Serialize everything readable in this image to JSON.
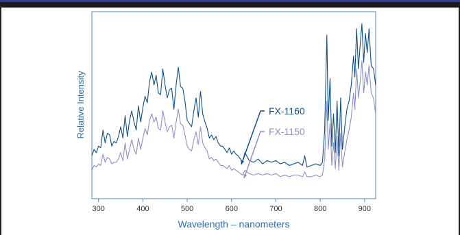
{
  "colors": {
    "fx1160": "#0f4f86",
    "fx1150": "#8e90c4",
    "axis": "#4f86b6",
    "label": "#2a6fb0",
    "tick_text": "#333333"
  },
  "chart_data": {
    "type": "line",
    "xlabel": "Wavelength – nanometers",
    "ylabel": "Relative Intensity",
    "xlim": [
      285,
      925
    ],
    "ylim": [
      0,
      100
    ],
    "xticks": [
      300,
      400,
      500,
      600,
      700,
      800,
      900
    ],
    "grid": false,
    "annotations": [
      {
        "text": "FX-1160",
        "series": 0
      },
      {
        "text": "FX-1150",
        "series": 1
      }
    ],
    "series": [
      {
        "name": "FX-1160",
        "x": [
          285,
          290,
          295,
          300,
          305,
          310,
          315,
          320,
          325,
          330,
          335,
          340,
          345,
          350,
          355,
          360,
          365,
          370,
          375,
          380,
          385,
          390,
          395,
          400,
          405,
          410,
          415,
          420,
          425,
          430,
          435,
          440,
          445,
          450,
          455,
          460,
          465,
          470,
          475,
          480,
          485,
          490,
          495,
          500,
          505,
          510,
          515,
          520,
          525,
          530,
          535,
          540,
          545,
          550,
          555,
          560,
          565,
          570,
          575,
          580,
          585,
          590,
          595,
          600,
          605,
          610,
          615,
          620,
          625,
          630,
          640,
          650,
          660,
          670,
          680,
          690,
          700,
          710,
          720,
          730,
          740,
          750,
          760,
          765,
          770,
          780,
          790,
          800,
          805,
          810,
          815,
          818,
          822,
          826,
          830,
          834,
          838,
          842,
          846,
          850,
          855,
          860,
          865,
          870,
          875,
          878,
          882,
          886,
          890,
          894,
          898,
          902,
          906,
          910,
          915,
          920,
          925
        ],
        "y": [
          16,
          20,
          18,
          22,
          21,
          32,
          24,
          30,
          29,
          22,
          25,
          24,
          28,
          34,
          27,
          41,
          28,
          38,
          44,
          37,
          32,
          47,
          37,
          46,
          53,
          49,
          62,
          68,
          60,
          66,
          55,
          54,
          70,
          60,
          52,
          57,
          58,
          45,
          60,
          71,
          59,
          58,
          50,
          38,
          36,
          34,
          44,
          52,
          40,
          56,
          42,
          37,
          33,
          27,
          29,
          26,
          28,
          24,
          22,
          22,
          20,
          18,
          21,
          17,
          19,
          17,
          16,
          14,
          12,
          18,
          13,
          12,
          14,
          11,
          13,
          12,
          13,
          11,
          12,
          10,
          11,
          12,
          10,
          16,
          9,
          10,
          11,
          10,
          12,
          32,
          91,
          38,
          64,
          22,
          42,
          18,
          50,
          16,
          52,
          20,
          33,
          45,
          50,
          60,
          78,
          65,
          95,
          70,
          85,
          98,
          74,
          92,
          80,
          95,
          72,
          70,
          60
        ]
      },
      {
        "name": "FX-1150",
        "x": [
          285,
          290,
          295,
          300,
          305,
          310,
          315,
          320,
          325,
          330,
          335,
          340,
          345,
          350,
          355,
          360,
          365,
          370,
          375,
          380,
          385,
          390,
          395,
          400,
          405,
          410,
          415,
          420,
          425,
          430,
          435,
          440,
          445,
          450,
          455,
          460,
          465,
          470,
          475,
          480,
          485,
          490,
          495,
          500,
          505,
          510,
          515,
          520,
          525,
          530,
          535,
          540,
          545,
          550,
          555,
          560,
          565,
          570,
          575,
          580,
          585,
          590,
          595,
          600,
          605,
          610,
          615,
          620,
          625,
          630,
          640,
          650,
          660,
          670,
          680,
          690,
          700,
          710,
          720,
          730,
          740,
          750,
          760,
          765,
          770,
          780,
          790,
          800,
          805,
          810,
          815,
          818,
          822,
          826,
          830,
          834,
          838,
          842,
          846,
          850,
          855,
          860,
          865,
          870,
          875,
          878,
          882,
          886,
          890,
          894,
          898,
          902,
          906,
          910,
          915,
          920,
          925
        ],
        "y": [
          7,
          10,
          9,
          11,
          10,
          17,
          12,
          15,
          14,
          11,
          12,
          12,
          14,
          18,
          13,
          24,
          14,
          20,
          26,
          20,
          17,
          27,
          20,
          27,
          33,
          29,
          38,
          42,
          37,
          40,
          33,
          32,
          44,
          37,
          31,
          34,
          35,
          27,
          37,
          45,
          36,
          35,
          29,
          22,
          20,
          19,
          26,
          31,
          23,
          34,
          24,
          21,
          19,
          14,
          15,
          13,
          14,
          12,
          10,
          10,
          9,
          8,
          10,
          7,
          8,
          7,
          6,
          5,
          4,
          7,
          5,
          4,
          5,
          4,
          5,
          4,
          5,
          3,
          4,
          3,
          4,
          4,
          3,
          6,
          3,
          3,
          4,
          3,
          4,
          14,
          50,
          20,
          36,
          10,
          24,
          8,
          28,
          7,
          30,
          9,
          18,
          26,
          32,
          40,
          55,
          45,
          70,
          52,
          62,
          75,
          55,
          68,
          60,
          72,
          55,
          52,
          42
        ]
      }
    ]
  }
}
